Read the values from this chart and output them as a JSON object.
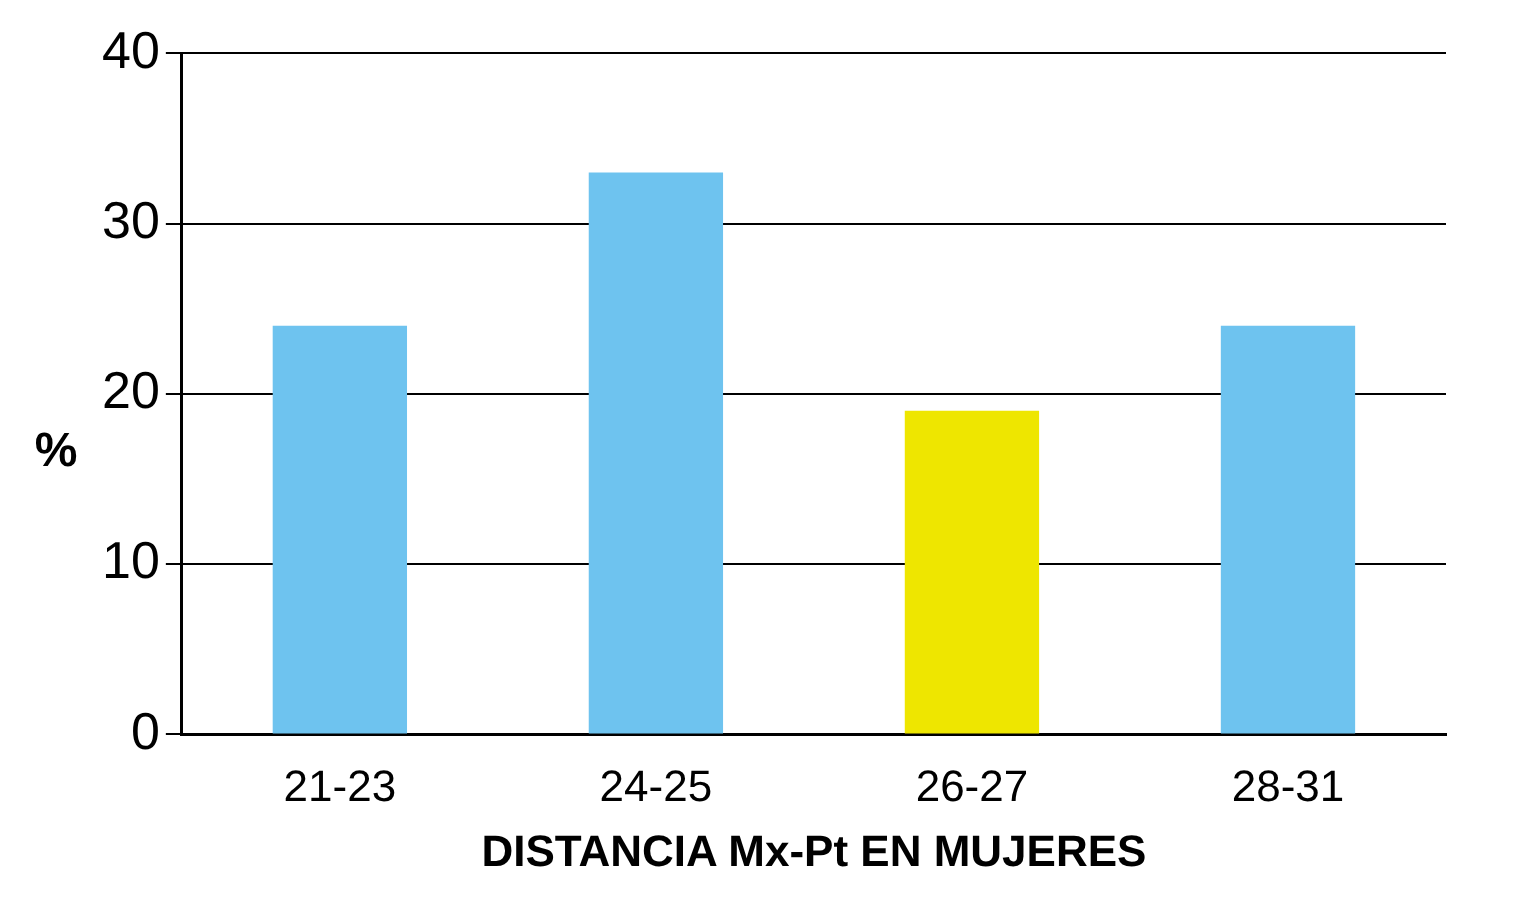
{
  "chart_data": {
    "type": "bar",
    "xlabel": "DISTANCIA Mx-Pt EN MUJERES",
    "ylabel": "%",
    "categories": [
      "21-23",
      "24-25",
      "26-27",
      "28-31"
    ],
    "values": [
      24,
      33,
      19,
      24
    ],
    "colors": [
      "#6ec3ef",
      "#6ec3ef",
      "#eee600",
      "#6ec3ef"
    ],
    "ylim": [
      0,
      40
    ],
    "yticks": [
      0,
      10,
      20,
      30,
      40
    ],
    "grid": "y",
    "legend": false
  }
}
